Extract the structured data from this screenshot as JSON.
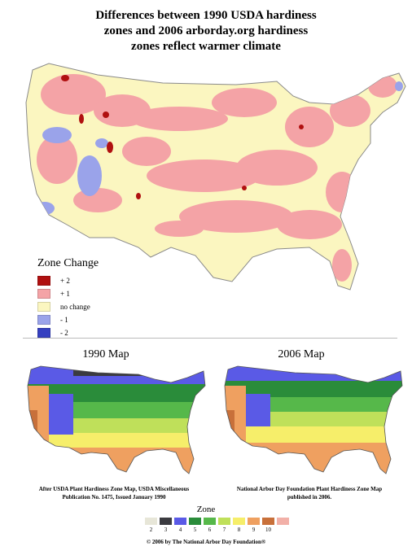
{
  "title_lines": [
    "Differences between 1990 USDA hardiness",
    "zones and 2006 arborday.org hardiness",
    "zones reflect warmer climate"
  ],
  "legend": {
    "title": "Zone Change",
    "items": [
      {
        "label": "+ 2",
        "color": "#b01010"
      },
      {
        "label": "+ 1",
        "color": "#f4a3a6"
      },
      {
        "label": "no change",
        "color": "#fbf6c0"
      },
      {
        "label": "- 1",
        "color": "#9aa3ea"
      },
      {
        "label": "- 2",
        "color": "#3540c0"
      }
    ]
  },
  "maps": [
    {
      "title": "1990 Map",
      "caption": "After USDA Plant Hardiness Zone Map, USDA Miscellaneous Publication No. 1475, Issued January 1990"
    },
    {
      "title": "2006 Map",
      "caption": "National Arbor Day Foundation Plant Hardiness Zone Map published in 2006."
    }
  ],
  "zone_scale": {
    "label": "Zone",
    "zones": [
      {
        "label": "2",
        "color": "#e7e6d8"
      },
      {
        "label": "3",
        "color": "#3b3b40"
      },
      {
        "label": "4",
        "color": "#5a5ae6"
      },
      {
        "label": "5",
        "color": "#2a8c3a"
      },
      {
        "label": "6",
        "color": "#56b84a"
      },
      {
        "label": "7",
        "color": "#bfe05a"
      },
      {
        "label": "8",
        "color": "#f6ee6a"
      },
      {
        "label": "9",
        "color": "#efa060"
      },
      {
        "label": "10",
        "color": "#c8703a"
      },
      {
        "label": "",
        "color": "#f2b0a8"
      }
    ]
  },
  "copyright": "© 2006 by The National Arbor Day Foundation®"
}
